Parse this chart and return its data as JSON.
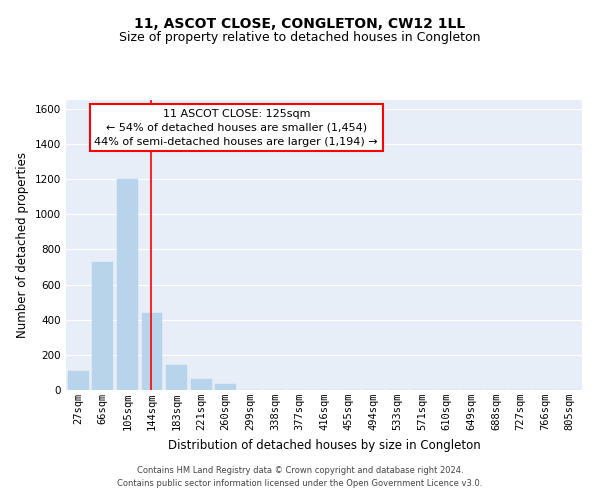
{
  "title": "11, ASCOT CLOSE, CONGLETON, CW12 1LL",
  "subtitle": "Size of property relative to detached houses in Congleton",
  "xlabel": "Distribution of detached houses by size in Congleton",
  "ylabel": "Number of detached properties",
  "bar_color": "#b8d4ea",
  "background_color": "#e8eef8",
  "grid_color": "#ffffff",
  "bin_labels": [
    "27sqm",
    "66sqm",
    "105sqm",
    "144sqm",
    "183sqm",
    "221sqm",
    "260sqm",
    "299sqm",
    "338sqm",
    "377sqm",
    "416sqm",
    "455sqm",
    "494sqm",
    "533sqm",
    "571sqm",
    "610sqm",
    "649sqm",
    "688sqm",
    "727sqm",
    "766sqm",
    "805sqm"
  ],
  "bar_heights": [
    110,
    730,
    1200,
    440,
    140,
    60,
    35,
    0,
    0,
    0,
    0,
    0,
    0,
    0,
    0,
    0,
    0,
    0,
    0,
    0,
    0
  ],
  "ylim": [
    0,
    1650
  ],
  "yticks": [
    0,
    200,
    400,
    600,
    800,
    1000,
    1200,
    1400,
    1600
  ],
  "property_line_bin_index": 2.97,
  "annotation_title": "11 ASCOT CLOSE: 125sqm",
  "annotation_line1": "← 54% of detached houses are smaller (1,454)",
  "annotation_line2": "44% of semi-detached houses are larger (1,194) →",
  "footer_line1": "Contains HM Land Registry data © Crown copyright and database right 2024.",
  "footer_line2": "Contains public sector information licensed under the Open Government Licence v3.0.",
  "title_fontsize": 10,
  "subtitle_fontsize": 9,
  "axis_label_fontsize": 8.5,
  "tick_fontsize": 7.5,
  "annotation_fontsize": 8,
  "footer_fontsize": 6
}
